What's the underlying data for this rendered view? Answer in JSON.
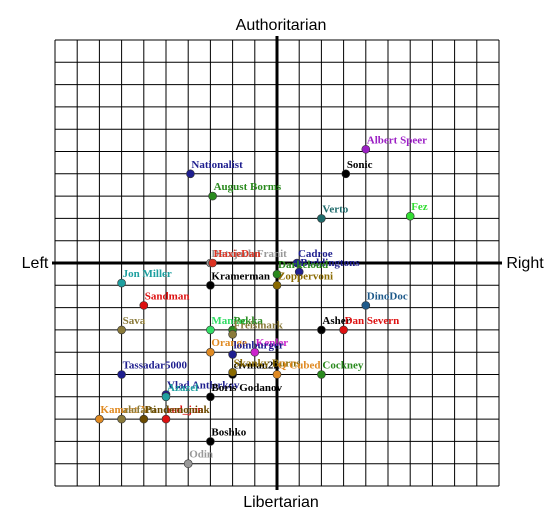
{
  "chart_data": {
    "type": "scatter",
    "title": "",
    "axis_labels": {
      "top": "Authoritarian",
      "bottom": "Libertarian",
      "left": "Left",
      "right": "Right"
    },
    "xlim": [
      -10,
      10
    ],
    "ylim": [
      -10,
      10
    ],
    "grid": true,
    "points": [
      {
        "name": "Albert Speer",
        "x": 4.0,
        "y": 5.1,
        "color": "#9b1fc4"
      },
      {
        "name": "Sonic",
        "x": 3.1,
        "y": 4.0,
        "color": "#000000"
      },
      {
        "name": "Nationalist",
        "x": -3.9,
        "y": 4.0,
        "color": "#1f1f8f"
      },
      {
        "name": "August Borms",
        "x": -2.9,
        "y": 3.0,
        "color": "#2a8a1e"
      },
      {
        "name": "Verto",
        "x": 2.0,
        "y": 2.0,
        "color": "#1e6a6a"
      },
      {
        "name": "Fez",
        "x": 6.0,
        "y": 2.1,
        "color": "#33dd33"
      },
      {
        "name": "Datajack Franit",
        "x": -3.0,
        "y": 0.0,
        "color": "#999999"
      },
      {
        "name": "HaxieDan",
        "x": -2.9,
        "y": 0.0,
        "color": "#dd3322"
      },
      {
        "name": "Cadroe",
        "x": 0.9,
        "y": 0.0,
        "color": "#1f1f8f"
      },
      {
        "name": "Boddingtons",
        "x": 1.0,
        "y": -0.4,
        "color": "#1f1f8f"
      },
      {
        "name": "Darkcloud",
        "x": 0.0,
        "y": -0.5,
        "color": "#2a8a1e"
      },
      {
        "name": "Zoppervoni",
        "x": 0.0,
        "y": -1.0,
        "color": "#8a6a00"
      },
      {
        "name": "Jon Miller",
        "x": -7.0,
        "y": -0.9,
        "color": "#1fa0a0"
      },
      {
        "name": "Kramerman",
        "x": -3.0,
        "y": -1.0,
        "color": "#000000"
      },
      {
        "name": "Sandman",
        "x": -6.0,
        "y": -1.9,
        "color": "#dd1111"
      },
      {
        "name": "DinoDoc",
        "x": 4.0,
        "y": -1.9,
        "color": "#1f5a8a"
      },
      {
        "name": "Sava",
        "x": -7.0,
        "y": -3.0,
        "color": "#8a7a3a"
      },
      {
        "name": "Maniac",
        "x": -3.0,
        "y": -3.0,
        "color": "#33dd66"
      },
      {
        "name": "Pekka",
        "x": -2.0,
        "y": -3.0,
        "color": "#2a8a1e"
      },
      {
        "name": "Freismark",
        "x": -2.0,
        "y": -3.2,
        "color": "#8a7a3a"
      },
      {
        "name": "Asher",
        "x": 2.0,
        "y": -3.0,
        "color": "#000000"
      },
      {
        "name": "Dan Severn",
        "x": 3.0,
        "y": -3.0,
        "color": "#dd1111"
      },
      {
        "name": "Orange",
        "x": -3.0,
        "y": -4.0,
        "color": "#e08a22"
      },
      {
        "name": "Kepler",
        "x": -1.0,
        "y": -4.0,
        "color": "#cc22cc"
      },
      {
        "name": "loinburger",
        "x": -2.0,
        "y": -4.1,
        "color": "#1f1f8f"
      },
      {
        "name": "Tassadar5000",
        "x": -7.0,
        "y": -5.0,
        "color": "#1f1f8f"
      },
      {
        "name": "civman2k",
        "x": -2.0,
        "y": -5.0,
        "color": "#000000"
      },
      {
        "name": "Skanky Burns",
        "x": -2.0,
        "y": -4.9,
        "color": "#8a6a00"
      },
      {
        "name": "Q Cubed",
        "x": 0.0,
        "y": -5.0,
        "color": "#e08a22"
      },
      {
        "name": "Cockney",
        "x": 2.0,
        "y": -5.0,
        "color": "#2a8a1e"
      },
      {
        "name": "Vlad Antlerkov",
        "x": -5.0,
        "y": -5.9,
        "color": "#1f1f8f"
      },
      {
        "name": "Azazel",
        "x": -5.0,
        "y": -6.0,
        "color": "#1fa0a0"
      },
      {
        "name": "Boris Godanov",
        "x": -3.0,
        "y": -6.0,
        "color": "#000000"
      },
      {
        "name": "Kamrat X",
        "x": -8.0,
        "y": -7.0,
        "color": "#e08a22"
      },
      {
        "name": "alofatti",
        "x": -7.0,
        "y": -7.0,
        "color": "#8a7a3a"
      },
      {
        "name": "red_jon",
        "x": -5.0,
        "y": -7.0,
        "color": "#dd1111"
      },
      {
        "name": "Pandemoniak",
        "x": -6.0,
        "y": -7.0,
        "color": "#6a4a00"
      },
      {
        "name": "Boshko",
        "x": -3.0,
        "y": -8.0,
        "color": "#000000"
      },
      {
        "name": "Odin",
        "x": -4.0,
        "y": -9.0,
        "color": "#999999"
      }
    ]
  }
}
